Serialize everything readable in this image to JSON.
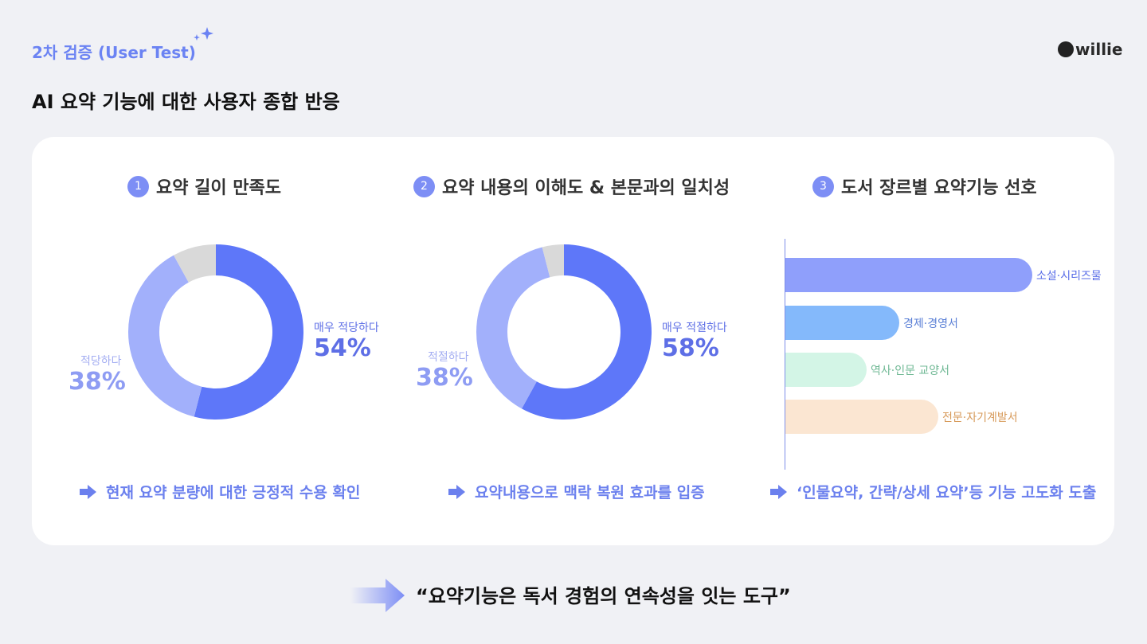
{
  "header": {
    "tag": "2차 검증 (User Test)",
    "logo": "willie",
    "title": "AI 요약 기능에 대한 사용자 종합 반응"
  },
  "sections": [
    {
      "number": "1",
      "title": "요약 길이 만족도",
      "conclusion": "현재 요약 분량에 대한 긍정적 수용 확인"
    },
    {
      "number": "2",
      "title": "요약 내용의 이해도 & 본문과의 일치성",
      "conclusion": "요약내용으로 맥락 복원 효과를 입증"
    },
    {
      "number": "3",
      "title": "도서 장르별 요약기능 선호",
      "conclusion": "‘인물요약, 간략/상세 요약’등 기능 고도화 도출"
    }
  ],
  "chart_data": [
    {
      "type": "pie",
      "title": "요약 길이 만족도",
      "labels": [
        "매우 적당하다",
        "적당하다",
        ""
      ],
      "values": [
        54,
        38,
        8
      ],
      "value_labels": [
        "54%",
        "38%",
        ""
      ],
      "colors": [
        "#5e77f9",
        "#a2b0fb",
        "#d9d9d9"
      ]
    },
    {
      "type": "pie",
      "title": "요약 내용의 이해도 & 본문과의 일치성",
      "labels": [
        "매우 적절하다",
        "적절하다",
        ""
      ],
      "values": [
        58,
        38,
        4
      ],
      "value_labels": [
        "58%",
        "38%",
        ""
      ],
      "colors": [
        "#5e77f9",
        "#a2b0fb",
        "#d9d9d9"
      ]
    },
    {
      "type": "bar",
      "title": "도서 장르별 요약기능 선호",
      "categories": [
        "소설·시리즈물",
        "경제·경영서",
        "역사·인문 교양서",
        "전문·자기계발서"
      ],
      "values": [
        100,
        46,
        33,
        62
      ],
      "colors": [
        "#8f9ffb",
        "#84b9fb",
        "#d3f5e6",
        "#fbe6d2"
      ],
      "label_colors": [
        "#5a6ee8",
        "#5a7fd6",
        "#6fb894",
        "#d79a5a"
      ]
    }
  ],
  "footer": {
    "quote": "“요약기능은 독서 경험의 연속성을 잇는 도구”"
  }
}
